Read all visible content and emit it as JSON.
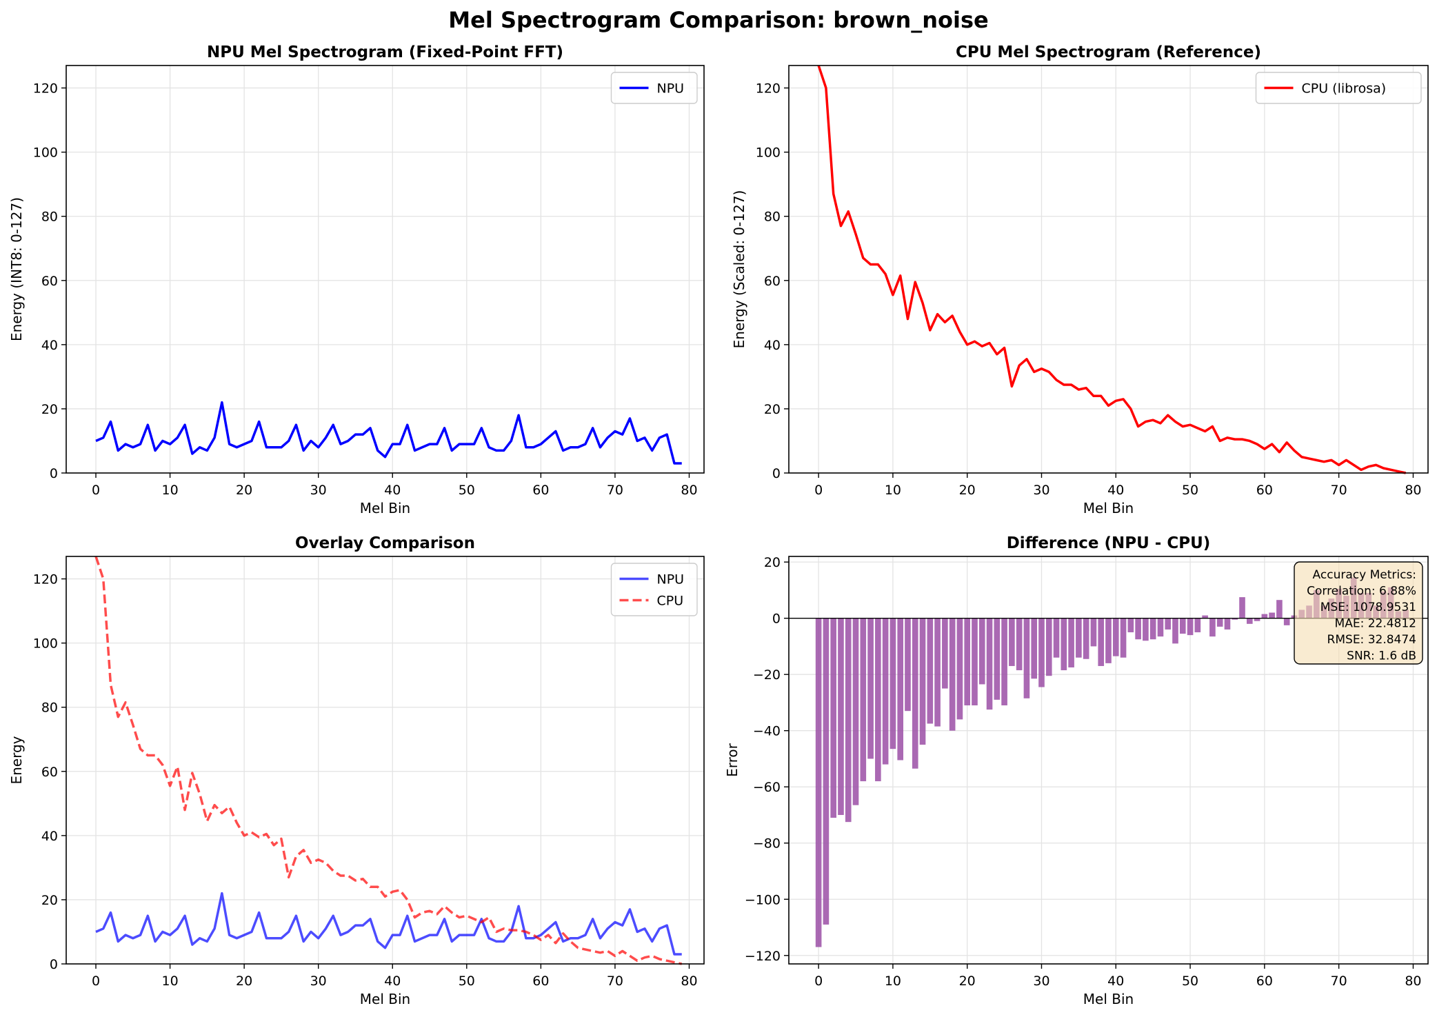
{
  "figure_title": "Mel Spectrogram Comparison: brown_noise",
  "colors": {
    "npu": "#0000ff",
    "cpu": "#ff0000",
    "diff_bar": "#9b4fa6",
    "grid": "#e3e3e3",
    "metrics_box_fill": "#f5deb3"
  },
  "chart_data": [
    {
      "id": "npu",
      "type": "line",
      "title": "NPU Mel Spectrogram (Fixed-Point FFT)",
      "xlabel": "Mel Bin",
      "ylabel": "Energy (INT8: 0-127)",
      "xlim": [
        -4,
        82
      ],
      "ylim": [
        0,
        127
      ],
      "xticks": [
        0,
        10,
        20,
        30,
        40,
        50,
        60,
        70,
        80
      ],
      "yticks": [
        0,
        20,
        40,
        60,
        80,
        100,
        120
      ],
      "grid": true,
      "legend": "top-right",
      "series": [
        {
          "name": "NPU",
          "color": "#0000ff",
          "style": "solid",
          "values": [
            10,
            11,
            16,
            7,
            9,
            8,
            9,
            15,
            7,
            10,
            9,
            11,
            15,
            6,
            8,
            7,
            11,
            22,
            9,
            8,
            9,
            10,
            16,
            8,
            8,
            8,
            10,
            15,
            7,
            10,
            8,
            11,
            15,
            9,
            10,
            12,
            12,
            14,
            7,
            5,
            9,
            9,
            15,
            7,
            8,
            9,
            9,
            14,
            7,
            9,
            9,
            9,
            14,
            8,
            7,
            7,
            10,
            18,
            8,
            8,
            9,
            11,
            13,
            7,
            8,
            8,
            9,
            14,
            8,
            11,
            13,
            12,
            17,
            10,
            11,
            7,
            11,
            12,
            3,
            3
          ]
        }
      ]
    },
    {
      "id": "cpu",
      "type": "line",
      "title": "CPU Mel Spectrogram (Reference)",
      "xlabel": "Mel Bin",
      "ylabel": "Energy (Scaled: 0-127)",
      "xlim": [
        -4,
        82
      ],
      "ylim": [
        0,
        127
      ],
      "xticks": [
        0,
        10,
        20,
        30,
        40,
        50,
        60,
        70,
        80
      ],
      "yticks": [
        0,
        20,
        40,
        60,
        80,
        100,
        120
      ],
      "grid": true,
      "legend": "top-right",
      "series": [
        {
          "name": "CPU (librosa)",
          "color": "#ff0000",
          "style": "solid",
          "values": [
            127,
            120,
            87,
            77,
            81.5,
            74.5,
            67,
            65,
            65,
            62,
            55.5,
            61.5,
            48,
            59.5,
            53,
            44.5,
            49.5,
            47,
            49,
            44,
            40,
            41,
            39.5,
            40.5,
            37,
            39,
            27,
            33.5,
            35.5,
            31.5,
            32.5,
            31.5,
            29,
            27.5,
            27.5,
            26,
            26.5,
            24,
            24,
            21,
            22.5,
            23,
            20,
            14.5,
            16,
            16.5,
            15.5,
            18,
            16,
            14.5,
            15,
            14,
            13,
            14.5,
            10,
            11,
            10.5,
            10.5,
            10,
            9,
            7.5,
            9,
            6.5,
            9.5,
            7,
            5,
            4.5,
            4,
            3.5,
            4,
            2.5,
            4,
            2.5,
            1,
            2,
            2.5,
            1.5,
            1,
            0.5,
            0
          ]
        }
      ]
    },
    {
      "id": "overlay",
      "type": "line",
      "title": "Overlay Comparison",
      "xlabel": "Mel Bin",
      "ylabel": "Energy",
      "xlim": [
        -4,
        82
      ],
      "ylim": [
        0,
        127
      ],
      "xticks": [
        0,
        10,
        20,
        30,
        40,
        50,
        60,
        70,
        80
      ],
      "yticks": [
        0,
        20,
        40,
        60,
        80,
        100,
        120
      ],
      "grid": true,
      "legend": "top-right",
      "series": [
        {
          "name": "NPU",
          "color": "#0000ff",
          "style": "solid",
          "alpha": 0.7,
          "ref": "npu"
        },
        {
          "name": "CPU",
          "color": "#ff0000",
          "style": "dashed",
          "alpha": 0.7,
          "ref": "cpu"
        }
      ]
    },
    {
      "id": "diff",
      "type": "bar",
      "title": "Difference (NPU - CPU)",
      "xlabel": "Mel Bin",
      "ylabel": "Error",
      "xlim": [
        -4,
        82
      ],
      "ylim": [
        -123,
        22
      ],
      "xticks": [
        0,
        10,
        20,
        30,
        40,
        50,
        60,
        70,
        80
      ],
      "yticks": [
        -120,
        -100,
        -80,
        -60,
        -40,
        -20,
        0,
        20
      ],
      "grid": true,
      "series": [
        {
          "name": "",
          "color": "#9b4fa6",
          "values": [
            -117,
            -109,
            -71,
            -70,
            -72.5,
            -66.5,
            -58,
            -50,
            -58,
            -52,
            -46.5,
            -50.5,
            -33,
            -53.5,
            -45,
            -37.5,
            -38.5,
            -25,
            -40,
            -36,
            -31,
            -31,
            -23.5,
            -32.5,
            -29,
            -31,
            -17,
            -18.5,
            -28.5,
            -21.5,
            -24.5,
            -20.5,
            -14,
            -18.5,
            -17.5,
            -14,
            -14.5,
            -10,
            -17,
            -16,
            -13.5,
            -14,
            -5,
            -7.5,
            -8,
            -7.5,
            -6.5,
            -4,
            -9,
            -5.5,
            -6,
            -5,
            1,
            -6.5,
            -3,
            -4,
            -0.5,
            7.5,
            -2,
            -1,
            1.5,
            2,
            6.5,
            -2.5,
            1,
            3,
            4.5,
            10,
            4.5,
            7,
            10.5,
            8,
            14.5,
            9,
            9,
            4.5,
            9.5,
            11,
            2.5,
            3
          ]
        }
      ],
      "metrics": {
        "title": "Accuracy Metrics:",
        "lines": [
          "Correlation: 6.88%",
          "MSE: 1078.9531",
          "MAE: 22.4812",
          "RMSE: 32.8474",
          "SNR: 1.6 dB"
        ]
      }
    }
  ]
}
